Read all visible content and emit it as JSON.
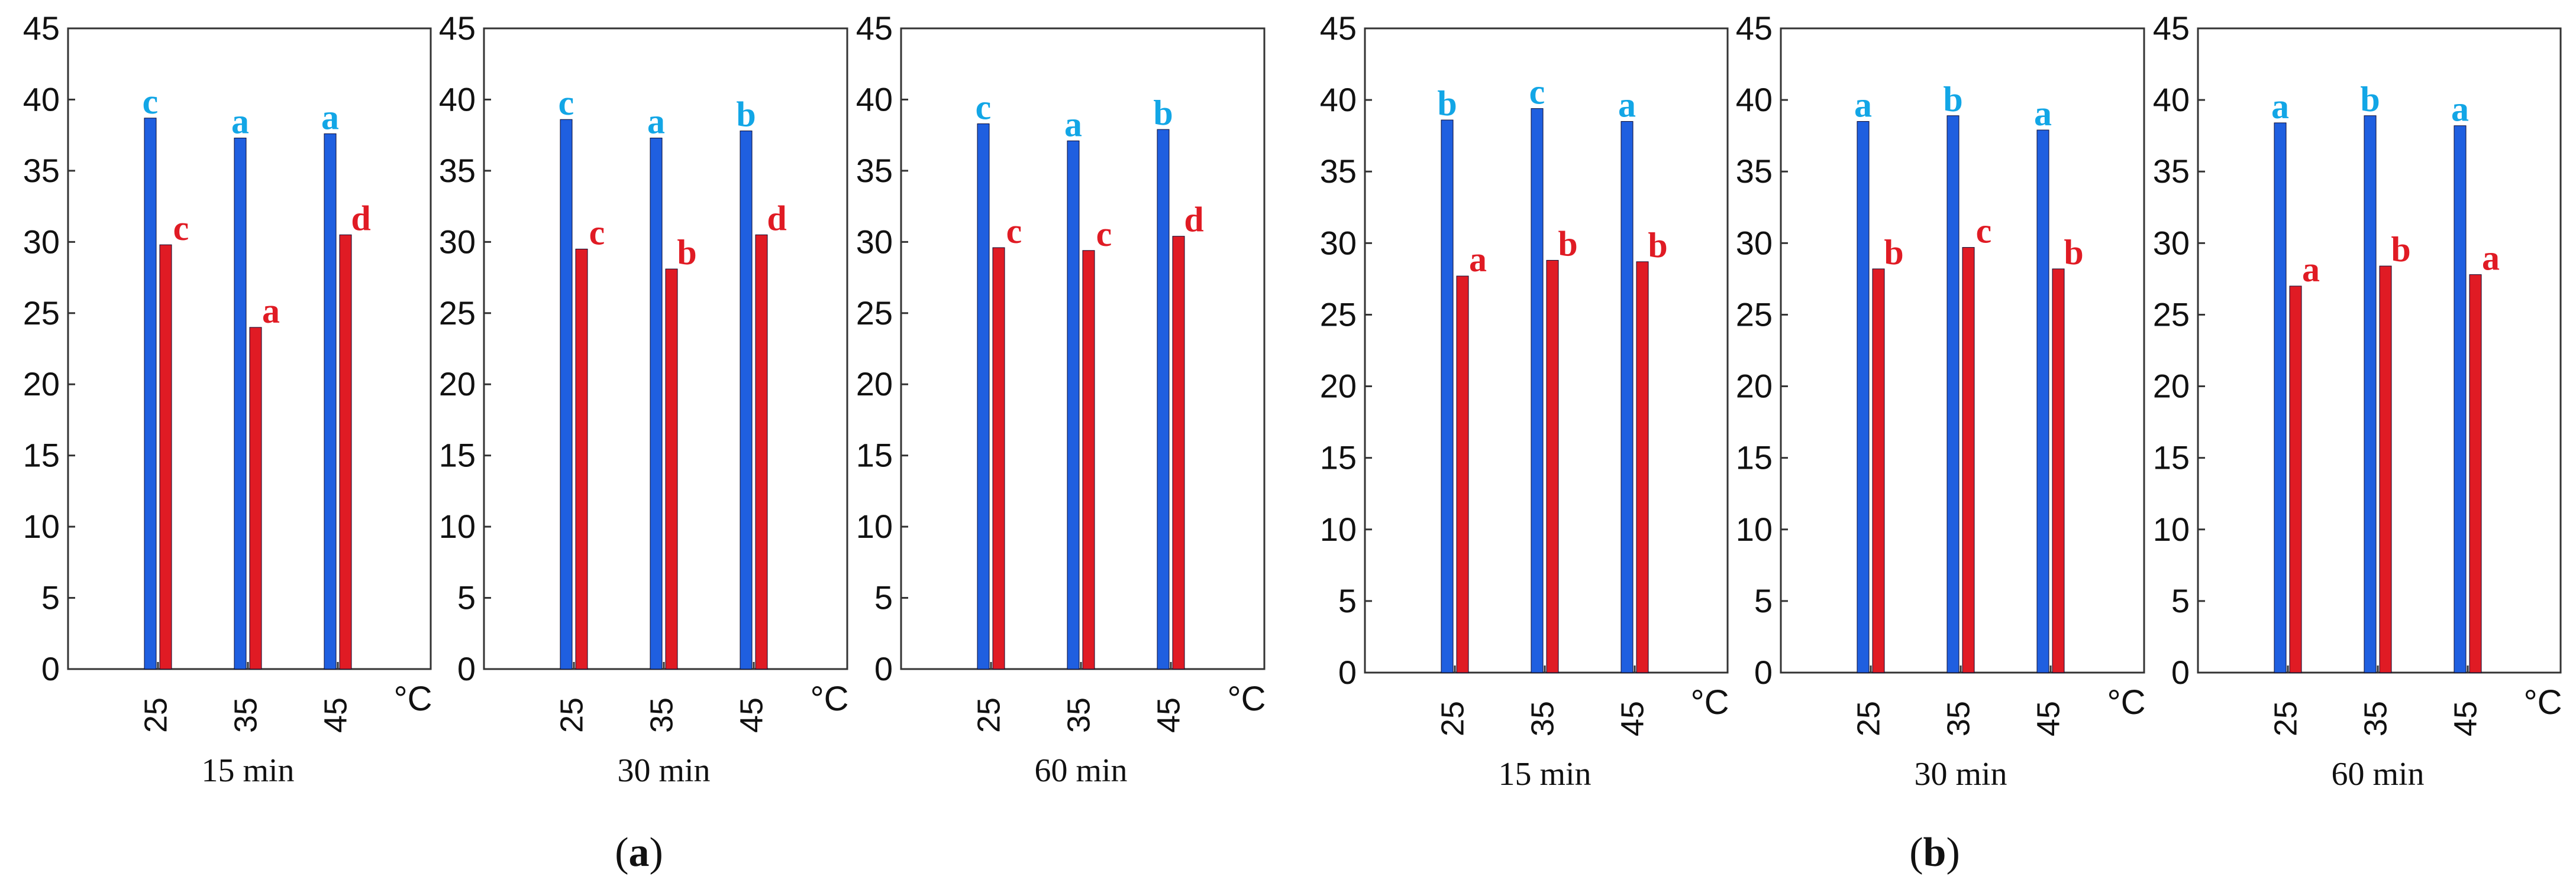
{
  "figure": {
    "panel_tags": [
      {
        "open": "(",
        "letter": "a",
        "close": ")"
      },
      {
        "open": "(",
        "letter": "b",
        "close": ")"
      }
    ]
  },
  "colors": {
    "series_blue": "#1f5fe0",
    "series_red": "#e01b24",
    "letter_blue": "#12a6e6",
    "letter_red": "#e01b24",
    "axis": "#333333"
  },
  "chart_data": [
    {
      "type": "bar",
      "panel": "a",
      "xlabel": "15 min",
      "x_unit": "°C",
      "categories": [
        "25",
        "35",
        "45"
      ],
      "ylim": [
        0,
        45
      ],
      "yticks": [
        0,
        5,
        10,
        15,
        20,
        25,
        30,
        35,
        40,
        45
      ],
      "grid": false,
      "series": [
        {
          "values": [
            38.7,
            37.3,
            37.6
          ],
          "letters": [
            "c",
            "a",
            "a"
          ]
        },
        {
          "values": [
            29.8,
            24.0,
            30.5
          ],
          "letters": [
            "c",
            "a",
            "d"
          ]
        }
      ]
    },
    {
      "type": "bar",
      "panel": "a",
      "xlabel": "30 min",
      "x_unit": "°C",
      "categories": [
        "25",
        "35",
        "45"
      ],
      "ylim": [
        0,
        45
      ],
      "yticks": [
        0,
        5,
        10,
        15,
        20,
        25,
        30,
        35,
        40,
        45
      ],
      "grid": false,
      "series": [
        {
          "values": [
            38.6,
            37.3,
            37.8
          ],
          "letters": [
            "c",
            "a",
            "b"
          ]
        },
        {
          "values": [
            29.5,
            28.1,
            30.5
          ],
          "letters": [
            "c",
            "b",
            "d"
          ]
        }
      ]
    },
    {
      "type": "bar",
      "panel": "a",
      "xlabel": "60 min",
      "x_unit": "°C",
      "categories": [
        "25",
        "35",
        "45"
      ],
      "ylim": [
        0,
        45
      ],
      "yticks": [
        0,
        5,
        10,
        15,
        20,
        25,
        30,
        35,
        40,
        45
      ],
      "grid": false,
      "series": [
        {
          "values": [
            38.3,
            37.1,
            37.9
          ],
          "letters": [
            "c",
            "a",
            "b"
          ]
        },
        {
          "values": [
            29.6,
            29.4,
            30.4
          ],
          "letters": [
            "c",
            "c",
            "d"
          ]
        }
      ]
    },
    {
      "type": "bar",
      "panel": "b",
      "xlabel": "15 min",
      "x_unit": "°C",
      "categories": [
        "25",
        "35",
        "45"
      ],
      "ylim": [
        0,
        45
      ],
      "yticks": [
        0,
        5,
        10,
        15,
        20,
        25,
        30,
        35,
        40,
        45
      ],
      "grid": false,
      "series": [
        {
          "values": [
            38.6,
            39.4,
            38.5
          ],
          "letters": [
            "b",
            "c",
            "a"
          ]
        },
        {
          "values": [
            27.7,
            28.8,
            28.7
          ],
          "letters": [
            "a",
            "b",
            "b"
          ]
        }
      ]
    },
    {
      "type": "bar",
      "panel": "b",
      "xlabel": "30 min",
      "x_unit": "°C",
      "categories": [
        "25",
        "35",
        "45"
      ],
      "ylim": [
        0,
        45
      ],
      "yticks": [
        0,
        5,
        10,
        15,
        20,
        25,
        30,
        35,
        40,
        45
      ],
      "grid": false,
      "series": [
        {
          "values": [
            38.5,
            38.9,
            37.9
          ],
          "letters": [
            "a",
            "b",
            "a"
          ]
        },
        {
          "values": [
            28.2,
            29.7,
            28.2
          ],
          "letters": [
            "b",
            "c",
            "b"
          ]
        }
      ]
    },
    {
      "type": "bar",
      "panel": "b",
      "xlabel": "60 min",
      "x_unit": "°C",
      "categories": [
        "25",
        "35",
        "45"
      ],
      "ylim": [
        0,
        45
      ],
      "yticks": [
        0,
        5,
        10,
        15,
        20,
        25,
        30,
        35,
        40,
        45
      ],
      "grid": false,
      "series": [
        {
          "values": [
            38.4,
            38.9,
            38.2
          ],
          "letters": [
            "a",
            "b",
            "a"
          ]
        },
        {
          "values": [
            27.0,
            28.4,
            27.8
          ],
          "letters": [
            "a",
            "b",
            "a"
          ]
        }
      ]
    }
  ]
}
